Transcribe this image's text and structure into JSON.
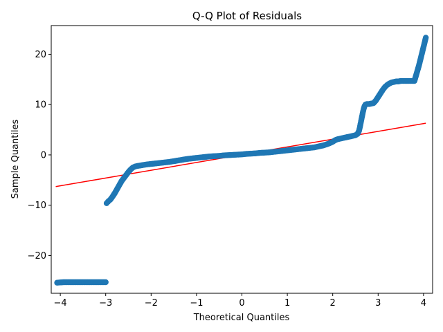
{
  "chart_data": {
    "type": "scatter",
    "title": "Q-Q Plot of Residuals",
    "xlabel": "Theoretical Quantiles",
    "ylabel": "Sample Quantiles",
    "xlim": [
      -4.2,
      4.2
    ],
    "ylim": [
      -27.5,
      25.7
    ],
    "xticks": [
      -4,
      -3,
      -2,
      -1,
      0,
      1,
      2,
      3,
      4
    ],
    "yticks": [
      -20,
      -10,
      0,
      10,
      20
    ],
    "grid": false,
    "marker_color": "#1f77b4",
    "line_color": "#ff0000",
    "reference_line": {
      "x": [
        -4.1,
        4.05
      ],
      "y": [
        -6.3,
        6.3
      ]
    },
    "series": [
      {
        "x": [
          -4.07,
          -3.93,
          -3.88,
          -3.83,
          -3.78,
          -3.73,
          -3.68,
          -3.63,
          -3.58,
          -3.53,
          -3.48,
          -3.43,
          -3.38,
          -3.33,
          -3.28,
          -3.23,
          -3.18,
          -3.13,
          -3.08,
          -3.03,
          -3.0,
          -2.98,
          -2.95,
          -2.9,
          -2.85,
          -2.8,
          -2.75,
          -2.7,
          -2.65,
          -2.6,
          -2.55,
          -2.5,
          -2.45,
          -2.4,
          -2.35,
          -2.3,
          -2.2,
          -2.1,
          -2.0,
          -1.9,
          -1.8,
          -1.7,
          -1.6,
          -1.5,
          -1.4,
          -1.3,
          -1.2,
          -1.1,
          -1.0,
          -0.9,
          -0.8,
          -0.7,
          -0.6,
          -0.5,
          -0.4,
          -0.3,
          -0.2,
          -0.1,
          0.0,
          0.1,
          0.2,
          0.3,
          0.4,
          0.5,
          0.6,
          0.7,
          0.8,
          0.9,
          1.0,
          1.1,
          1.2,
          1.3,
          1.4,
          1.5,
          1.6,
          1.7,
          1.8,
          1.9,
          2.0,
          2.05,
          2.1,
          2.2,
          2.3,
          2.4,
          2.5,
          2.55,
          2.58,
          2.6,
          2.62,
          2.64,
          2.66,
          2.68,
          2.7,
          2.72,
          2.75,
          2.8,
          2.85,
          2.9,
          2.95,
          3.0,
          3.05,
          3.1,
          3.15,
          3.2,
          3.25,
          3.3,
          3.35,
          3.4,
          3.45,
          3.5,
          3.55,
          3.6,
          3.65,
          3.7,
          3.75,
          3.8,
          3.9,
          4.05
        ],
        "y": [
          -25.4,
          -25.3,
          -25.3,
          -25.3,
          -25.3,
          -25.3,
          -25.3,
          -25.3,
          -25.3,
          -25.3,
          -25.3,
          -25.3,
          -25.3,
          -25.3,
          -25.3,
          -25.3,
          -25.3,
          -25.3,
          -25.3,
          -25.3,
          -25.3,
          -9.6,
          -9.3,
          -8.9,
          -8.3,
          -7.6,
          -6.8,
          -6.0,
          -5.2,
          -4.6,
          -4.0,
          -3.4,
          -2.9,
          -2.5,
          -2.3,
          -2.2,
          -2.05,
          -1.9,
          -1.8,
          -1.7,
          -1.6,
          -1.5,
          -1.4,
          -1.25,
          -1.1,
          -0.95,
          -0.8,
          -0.7,
          -0.6,
          -0.5,
          -0.4,
          -0.3,
          -0.25,
          -0.2,
          -0.1,
          -0.05,
          0.0,
          0.05,
          0.1,
          0.2,
          0.25,
          0.3,
          0.4,
          0.45,
          0.5,
          0.6,
          0.7,
          0.8,
          0.9,
          1.0,
          1.1,
          1.2,
          1.3,
          1.4,
          1.5,
          1.7,
          1.9,
          2.2,
          2.6,
          2.9,
          3.1,
          3.3,
          3.5,
          3.7,
          3.9,
          4.2,
          4.8,
          5.6,
          6.5,
          7.4,
          8.3,
          9.1,
          9.7,
          10.0,
          10.1,
          10.1,
          10.2,
          10.3,
          10.8,
          11.5,
          12.2,
          12.9,
          13.5,
          13.9,
          14.2,
          14.4,
          14.5,
          14.6,
          14.6,
          14.7,
          14.7,
          14.7,
          14.7,
          14.7,
          14.7,
          14.7,
          17.8,
          23.3
        ]
      }
    ]
  }
}
